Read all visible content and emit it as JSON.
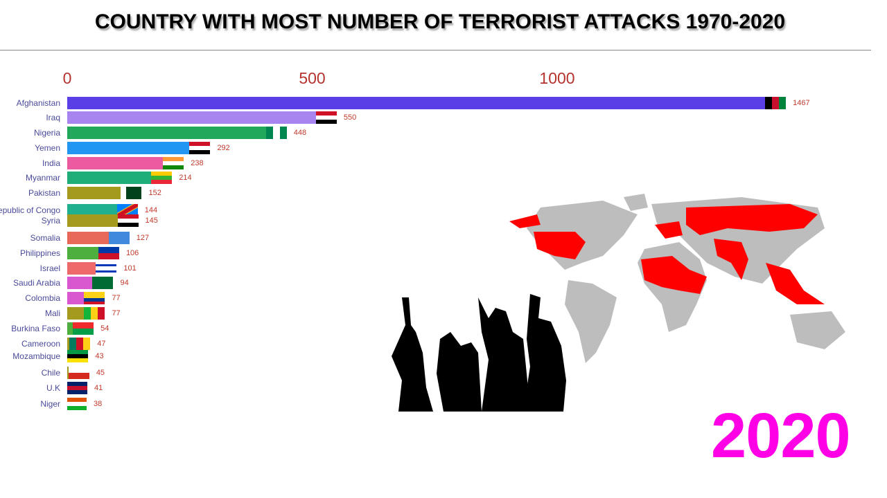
{
  "title": "COUNTRY WITH MOST NUMBER OF TERRORIST ATTACKS 1970-2020",
  "year": "2020",
  "colors": {
    "year": "#ff00e6",
    "tick": "#b5332e",
    "value": "#c0392b",
    "label": "#4a4a9a",
    "map_land": "#bdbdbd",
    "map_highlight": "#ff0000"
  },
  "chart_data": {
    "type": "bar",
    "orientation": "horizontal",
    "title": "COUNTRY WITH MOST NUMBER OF TERRORIST ATTACKS 1970-2020",
    "xlim": [
      0,
      1500
    ],
    "xticks": [
      0,
      500,
      1000
    ],
    "xtick_labels": [
      "0",
      "500",
      "1000"
    ],
    "axis_position": "top",
    "grid": false,
    "categories": [
      "Afghanistan",
      "Iraq",
      "Nigeria",
      "Yemen",
      "India",
      "Myanmar",
      "Pakistan",
      "Republic of Congo",
      "Syria",
      "Somalia",
      "Philippines",
      "Israel",
      "Saudi Arabia",
      "Colombia",
      "Mali",
      "Burkina Faso",
      "Cameroon",
      "Mozambique",
      "Chile",
      "U.K",
      "Niger"
    ],
    "values": [
      1467,
      550,
      448,
      292,
      238,
      214,
      152,
      144,
      145,
      127,
      106,
      101,
      94,
      77,
      77,
      54,
      47,
      43,
      45,
      41,
      38
    ],
    "bar_colors": [
      "#5b3fe6",
      "#a784f0",
      "#22a85a",
      "#2196f3",
      "#ec5a9f",
      "#1fae7a",
      "#a39a1e",
      "#1fb08f",
      "#a39a1e",
      "#e8695a",
      "#4caf3e",
      "#ee6a6a",
      "#d958d0",
      "#d958d0",
      "#a39a1e",
      "#4caf3e",
      "#a39a1e",
      "#a39a1e",
      "#a39a1e",
      "#a39a1e",
      "#a39a1e"
    ],
    "flags": [
      {
        "dir": "v",
        "colors": [
          "#000000",
          "#c8102e",
          "#00843d"
        ]
      },
      {
        "dir": "h",
        "colors": [
          "#ce1126",
          "#ffffff",
          "#000000"
        ]
      },
      {
        "dir": "v",
        "colors": [
          "#008751",
          "#ffffff",
          "#008751"
        ]
      },
      {
        "dir": "h",
        "colors": [
          "#ce1126",
          "#ffffff",
          "#000000"
        ]
      },
      {
        "dir": "h",
        "colors": [
          "#ff9933",
          "#ffffff",
          "#138808"
        ]
      },
      {
        "dir": "h",
        "colors": [
          "#fecb00",
          "#34b233",
          "#ea2839"
        ]
      },
      {
        "dir": "v",
        "colors": [
          "#ffffff",
          "#01411c",
          "#01411c",
          "#01411c"
        ]
      },
      {
        "dir": "d",
        "colors": [
          "#007fff",
          "#f7d618",
          "#ce1021"
        ]
      },
      {
        "dir": "h",
        "colors": [
          "#ce1126",
          "#ffffff",
          "#000000"
        ]
      },
      {
        "dir": "h",
        "colors": [
          "#4189dd",
          "#4189dd"
        ]
      },
      {
        "dir": "h",
        "colors": [
          "#0038a8",
          "#ce1126"
        ]
      },
      {
        "dir": "h",
        "colors": [
          "#ffffff",
          "#0038b8",
          "#ffffff",
          "#ffffff",
          "#0038b8",
          "#ffffff"
        ]
      },
      {
        "dir": "h",
        "colors": [
          "#006c35",
          "#006c35"
        ]
      },
      {
        "dir": "h",
        "colors": [
          "#fcd116",
          "#fcd116",
          "#003893",
          "#ce1126"
        ]
      },
      {
        "dir": "v",
        "colors": [
          "#14b53a",
          "#fcd116",
          "#ce1126"
        ]
      },
      {
        "dir": "h",
        "colors": [
          "#ef2b2d",
          "#009e49"
        ]
      },
      {
        "dir": "v",
        "colors": [
          "#007a5e",
          "#ce1126",
          "#fcd116"
        ]
      },
      {
        "dir": "h",
        "colors": [
          "#009a44",
          "#000000",
          "#fce100"
        ]
      },
      {
        "dir": "h",
        "colors": [
          "#ffffff",
          "#d52b1e"
        ]
      },
      {
        "dir": "h",
        "colors": [
          "#012169",
          "#c8102e",
          "#012169"
        ]
      },
      {
        "dir": "h",
        "colors": [
          "#e05206",
          "#ffffff",
          "#0db02b"
        ]
      }
    ]
  }
}
